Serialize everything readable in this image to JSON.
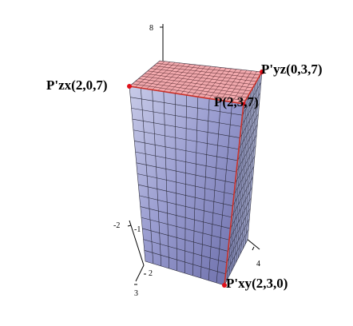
{
  "axes": {
    "ticks": [
      {
        "id": "z8",
        "text": "8"
      },
      {
        "id": "ym2",
        "text": "-2"
      },
      {
        "id": "ym1",
        "text": "-1"
      },
      {
        "id": "x2",
        "text": "2"
      },
      {
        "id": "x3",
        "text": "3"
      },
      {
        "id": "y4",
        "text": "4"
      }
    ]
  },
  "points": [
    {
      "id": "pzx",
      "label": "P'zx(2,0,7)"
    },
    {
      "id": "pyz",
      "label": "P'yz(0,3,7)"
    },
    {
      "id": "p",
      "label": "P(2,3,7)"
    },
    {
      "id": "pxy",
      "label": "P'xy(2,3,0)"
    }
  ],
  "colors": {
    "top_face": "#f0a8ac",
    "front_face": "#8a8cc4",
    "side_face": "#9aa0c8",
    "vertex": "#e0101a",
    "edge": "#c83028",
    "grid": "#303040"
  }
}
